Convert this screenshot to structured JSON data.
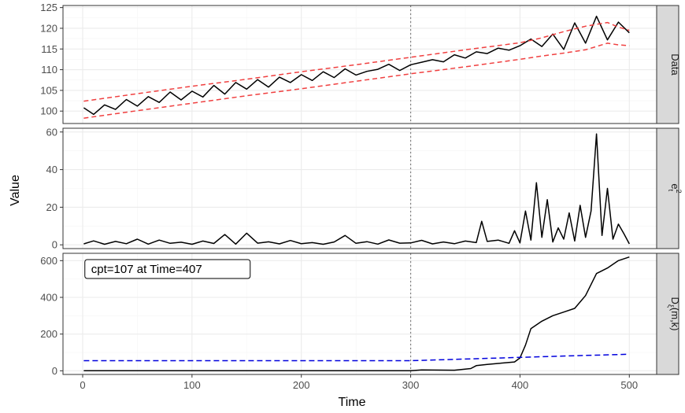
{
  "chart_data": {
    "type": "line",
    "xlabel": "Time",
    "ylabel": "Value",
    "xlim": [
      -18,
      525
    ],
    "x_ticks": [
      0,
      100,
      200,
      300,
      400,
      500
    ],
    "vline_x": 300,
    "colors": {
      "series": "#000000",
      "band": "#f04040",
      "threshold": "#0000dd",
      "vline": "#808080",
      "grid_major": "#ebebeb",
      "grid_minor": "#f5f5f5",
      "strip_bg": "#d9d9d9"
    },
    "panels": [
      {
        "strip": "Data",
        "ylim": [
          97,
          125.5
        ],
        "y_ticks": [
          100,
          105,
          110,
          115,
          120,
          125
        ],
        "series": [
          {
            "x": [
              1,
              10,
              20,
              30,
              40,
              50,
              60,
              70,
              80,
              90,
              100,
              110,
              120,
              130,
              140,
              150,
              160,
              170,
              180,
              190,
              200,
              210,
              220,
              230,
              240,
              250,
              260,
              270,
              280,
              290,
              300,
              310,
              320,
              330,
              340,
              350,
              360,
              370,
              380,
              390,
              400,
              410,
              420,
              430,
              440,
              450,
              460,
              470,
              480,
              490,
              500
            ],
            "values": [
              100.8,
              99.2,
              101.5,
              100.4,
              102.8,
              101.2,
              103.5,
              102.1,
              104.6,
              102.7,
              104.8,
              103.4,
              106.2,
              104.1,
              106.9,
              105.3,
              107.6,
              105.8,
              108.2,
              106.9,
              108.8,
              107.4,
              109.5,
              108.1,
              110.2,
              108.7,
              109.6,
              110.1,
              111.3,
              109.8,
              111.2,
              111.8,
              112.4,
              111.9,
              113.6,
              112.8,
              114.3,
              113.9,
              115.2,
              114.7,
              115.8,
              117.4,
              115.6,
              118.6,
              114.9,
              121.3,
              116.4,
              122.9,
              117.2,
              121.5,
              118.9
            ]
          },
          {
            "x": [
              1,
              50,
              100,
              150,
              200,
              250,
              300,
              350,
              400,
              420,
              440,
              460,
              480,
              490,
              500
            ],
            "values": [
              102.4,
              104.2,
              106.0,
              107.7,
              109.5,
              111.2,
              113.0,
              114.8,
              116.5,
              117.7,
              119.2,
              120.5,
              121.4,
              120.3,
              119.5
            ]
          },
          {
            "x": [
              1,
              50,
              100,
              150,
              200,
              250,
              300,
              350,
              400,
              420,
              440,
              460,
              480,
              490,
              500
            ],
            "values": [
              98.3,
              100.1,
              101.9,
              103.7,
              105.4,
              107.2,
              109.0,
              110.7,
              112.5,
              113.3,
              114.0,
              114.8,
              116.4,
              116.0,
              115.8
            ]
          }
        ]
      },
      {
        "strip": "e",
        "strip_sub": "t",
        "strip_sup": "2",
        "ylim": [
          -2,
          62
        ],
        "y_ticks": [
          0,
          20,
          40,
          60
        ],
        "series": [
          {
            "x": [
              1,
              10,
              20,
              30,
              40,
              50,
              60,
              70,
              80,
              90,
              100,
              110,
              120,
              130,
              140,
              150,
              160,
              170,
              180,
              190,
              200,
              210,
              220,
              230,
              240,
              250,
              260,
              270,
              280,
              290,
              300,
              310,
              320,
              330,
              340,
              350,
              360,
              365,
              370,
              380,
              390,
              395,
              400,
              405,
              410,
              415,
              420,
              425,
              430,
              435,
              440,
              445,
              450,
              455,
              460,
              465,
              470,
              475,
              480,
              485,
              490,
              495,
              500
            ],
            "values": [
              0.5,
              2.1,
              0.3,
              1.8,
              0.6,
              3.0,
              0.4,
              2.5,
              0.8,
              1.4,
              0.3,
              2.0,
              0.7,
              5.5,
              0.4,
              6.2,
              0.9,
              1.6,
              0.5,
              2.3,
              0.6,
              1.2,
              0.3,
              1.5,
              5.0,
              0.8,
              1.7,
              0.4,
              2.6,
              0.9,
              1.0,
              2.4,
              0.5,
              1.5,
              0.6,
              2.0,
              1.2,
              12.5,
              1.8,
              2.5,
              0.8,
              7.5,
              1.0,
              18.0,
              2.5,
              33.0,
              4.0,
              24.0,
              1.5,
              9.0,
              3.0,
              17.0,
              2.0,
              21.0,
              4.0,
              18.0,
              59.0,
              5.0,
              30.0,
              3.0,
              11.0,
              6.0,
              0.5
            ]
          }
        ]
      },
      {
        "strip": "D",
        "strip_sub": "ξ",
        "strip_suffix": "(m,k)",
        "ylim": [
          -20,
          640
        ],
        "y_ticks": [
          0,
          200,
          400,
          600
        ],
        "annotation": "cpt=107 at Time=407",
        "series": [
          {
            "x": [
              1,
              300,
              310,
              320,
              340,
              355,
              360,
              370,
              380,
              395,
              400,
              405,
              410,
              420,
              430,
              440,
              450,
              460,
              470,
              480,
              490,
              500
            ],
            "values": [
              0,
              0,
              5,
              4,
              3,
              12,
              28,
              35,
              40,
              48,
              70,
              140,
              230,
              270,
              300,
              320,
              340,
              410,
              530,
              560,
              600,
              620
            ]
          },
          {
            "x": [
              1,
              300,
              350,
              400,
              450,
              500
            ],
            "values": [
              55,
              55,
              64,
              73,
              82,
              90
            ]
          }
        ]
      }
    ]
  }
}
